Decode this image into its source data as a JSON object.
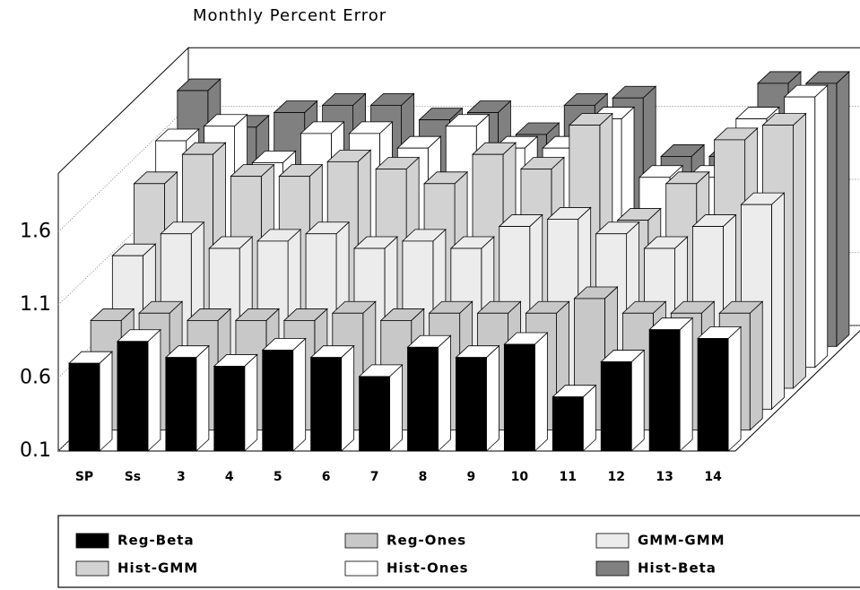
{
  "chart_data": {
    "type": "bar3d",
    "title": "Monthly Percent Error",
    "categories": [
      "SP",
      "Ss",
      "3",
      "4",
      "5",
      "6",
      "7",
      "8",
      "9",
      "10",
      "11",
      "12",
      "13",
      "14"
    ],
    "series": [
      {
        "name": "Reg-Beta",
        "color": "#000000",
        "values": [
          0.7,
          0.85,
          0.74,
          0.68,
          0.79,
          0.74,
          0.61,
          0.81,
          0.74,
          0.83,
          0.47,
          0.71,
          0.93,
          0.87
        ]
      },
      {
        "name": "Reg-Ones",
        "color": "#c8c8c8",
        "values": [
          0.85,
          0.9,
          0.85,
          0.85,
          0.85,
          0.9,
          0.85,
          0.9,
          0.9,
          0.9,
          1.0,
          0.9,
          0.9,
          0.9
        ]
      },
      {
        "name": "GMM-GMM",
        "color": "#ececec",
        "values": [
          1.15,
          1.3,
          1.2,
          1.25,
          1.3,
          1.2,
          1.25,
          1.2,
          1.35,
          1.4,
          1.3,
          1.2,
          1.35,
          1.5
        ]
      },
      {
        "name": "Hist-GMM",
        "color": "#d2d2d2",
        "values": [
          1.5,
          1.7,
          1.55,
          1.55,
          1.65,
          1.6,
          1.5,
          1.7,
          1.6,
          1.9,
          1.25,
          1.5,
          1.8,
          1.9
        ]
      },
      {
        "name": "Hist-Ones",
        "color": "#ffffff",
        "values": [
          1.65,
          1.75,
          1.5,
          1.7,
          1.7,
          1.6,
          1.75,
          1.6,
          1.6,
          1.8,
          1.4,
          1.4,
          1.8,
          1.95
        ]
      },
      {
        "name": "Hist-Beta",
        "color": "#808080",
        "values": [
          1.85,
          1.6,
          1.7,
          1.75,
          1.75,
          1.65,
          1.7,
          1.55,
          1.75,
          1.8,
          1.4,
          1.4,
          1.9,
          1.9
        ]
      }
    ],
    "ylim": [
      0.1,
      2.0
    ],
    "yticks": [
      0.1,
      0.6,
      1.1,
      1.6
    ],
    "grid": true
  }
}
